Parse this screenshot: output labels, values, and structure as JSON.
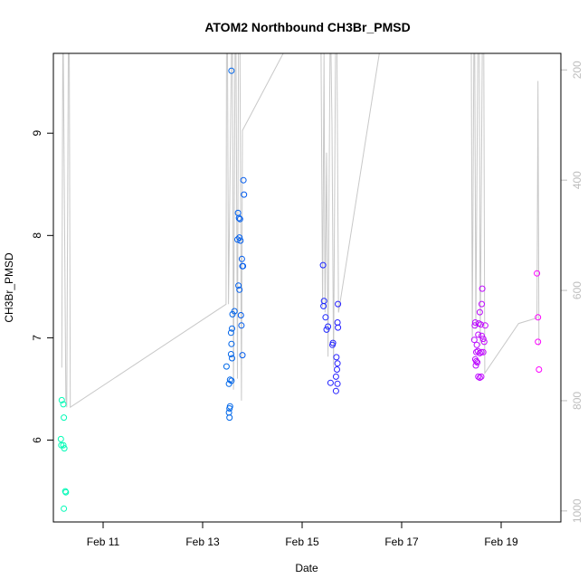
{
  "chart_data": {
    "type": "scatter",
    "title": "ATOM2 Northbound CH3Br_PMSD",
    "xlabel": "Date",
    "ylabel": "CH3Br_PMSD",
    "xlim": [
      10.0,
      20.2
    ],
    "ylim": [
      5.2,
      9.78
    ],
    "right_axis": {
      "range": [
        1020,
        170
      ],
      "ticks": [
        200,
        400,
        600,
        800,
        1000
      ],
      "color": "#bdbdbd"
    },
    "x_ticks": [
      {
        "value": 11,
        "label": "Feb 11"
      },
      {
        "value": 13,
        "label": "Feb 13"
      },
      {
        "value": 15,
        "label": "Feb 15"
      },
      {
        "value": 17,
        "label": "Feb 17"
      },
      {
        "value": 19,
        "label": "Feb 19"
      }
    ],
    "y_ticks": [
      6,
      7,
      8,
      9
    ],
    "altitude_track": [
      [
        10.17,
        740
      ],
      [
        10.19,
        160
      ],
      [
        10.2,
        160
      ],
      [
        10.25,
        795
      ],
      [
        10.27,
        812
      ],
      [
        10.3,
        160
      ],
      [
        10.32,
        160
      ],
      [
        10.34,
        812
      ],
      [
        13.47,
        625
      ],
      [
        13.48,
        160
      ],
      [
        13.5,
        160
      ],
      [
        13.52,
        625
      ],
      [
        13.58,
        160
      ],
      [
        13.6,
        160
      ],
      [
        13.62,
        780
      ],
      [
        13.65,
        160
      ],
      [
        13.67,
        160
      ],
      [
        13.7,
        760
      ],
      [
        13.72,
        160
      ],
      [
        13.75,
        160
      ],
      [
        13.78,
        800
      ],
      [
        13.8,
        310
      ],
      [
        14.62,
        160
      ],
      [
        15.38,
        160
      ],
      [
        15.41,
        630
      ],
      [
        15.44,
        160
      ],
      [
        15.46,
        640
      ],
      [
        15.49,
        350
      ],
      [
        15.52,
        720
      ],
      [
        15.56,
        160
      ],
      [
        15.58,
        160
      ],
      [
        15.6,
        300
      ],
      [
        15.63,
        740
      ],
      [
        15.67,
        160
      ],
      [
        15.7,
        160
      ],
      [
        15.73,
        640
      ],
      [
        16.55,
        160
      ],
      [
        18.4,
        160
      ],
      [
        18.42,
        690
      ],
      [
        18.45,
        160
      ],
      [
        18.47,
        160
      ],
      [
        18.49,
        670
      ],
      [
        18.53,
        160
      ],
      [
        18.56,
        160
      ],
      [
        18.58,
        700
      ],
      [
        18.62,
        160
      ],
      [
        18.65,
        160
      ],
      [
        18.67,
        750
      ],
      [
        19.35,
        660
      ],
      [
        19.72,
        650
      ],
      [
        19.74,
        220
      ],
      [
        19.76,
        700
      ]
    ],
    "points": [
      {
        "x": 10.17,
        "y": 6.39
      },
      {
        "x": 10.2,
        "y": 6.35
      },
      {
        "x": 10.21,
        "y": 6.22
      },
      {
        "x": 10.15,
        "y": 6.01
      },
      {
        "x": 10.16,
        "y": 5.95
      },
      {
        "x": 10.2,
        "y": 5.95
      },
      {
        "x": 10.22,
        "y": 5.92
      },
      {
        "x": 10.24,
        "y": 5.5
      },
      {
        "x": 10.25,
        "y": 5.49
      },
      {
        "x": 10.21,
        "y": 5.33
      },
      {
        "x": 13.58,
        "y": 9.61
      },
      {
        "x": 13.82,
        "y": 8.54
      },
      {
        "x": 13.83,
        "y": 8.4
      },
      {
        "x": 13.71,
        "y": 8.22
      },
      {
        "x": 13.73,
        "y": 8.17
      },
      {
        "x": 13.75,
        "y": 8.16
      },
      {
        "x": 13.7,
        "y": 7.96
      },
      {
        "x": 13.74,
        "y": 7.98
      },
      {
        "x": 13.76,
        "y": 7.95
      },
      {
        "x": 13.79,
        "y": 7.77
      },
      {
        "x": 13.8,
        "y": 7.7
      },
      {
        "x": 13.81,
        "y": 7.7
      },
      {
        "x": 13.72,
        "y": 7.51
      },
      {
        "x": 13.74,
        "y": 7.47
      },
      {
        "x": 13.64,
        "y": 7.26
      },
      {
        "x": 13.6,
        "y": 7.23
      },
      {
        "x": 13.77,
        "y": 7.22
      },
      {
        "x": 13.78,
        "y": 7.12
      },
      {
        "x": 13.59,
        "y": 7.09
      },
      {
        "x": 13.57,
        "y": 7.05
      },
      {
        "x": 13.58,
        "y": 6.94
      },
      {
        "x": 13.57,
        "y": 6.84
      },
      {
        "x": 13.59,
        "y": 6.8
      },
      {
        "x": 13.8,
        "y": 6.83
      },
      {
        "x": 13.48,
        "y": 6.72
      },
      {
        "x": 13.55,
        "y": 6.59
      },
      {
        "x": 13.58,
        "y": 6.58
      },
      {
        "x": 13.53,
        "y": 6.55
      },
      {
        "x": 13.55,
        "y": 6.33
      },
      {
        "x": 13.54,
        "y": 6.31
      },
      {
        "x": 13.53,
        "y": 6.27
      },
      {
        "x": 13.54,
        "y": 6.22
      },
      {
        "x": 15.42,
        "y": 7.71
      },
      {
        "x": 15.44,
        "y": 7.36
      },
      {
        "x": 15.43,
        "y": 7.31
      },
      {
        "x": 15.72,
        "y": 7.33
      },
      {
        "x": 15.47,
        "y": 7.2
      },
      {
        "x": 15.52,
        "y": 7.11
      },
      {
        "x": 15.49,
        "y": 7.08
      },
      {
        "x": 15.71,
        "y": 7.15
      },
      {
        "x": 15.72,
        "y": 7.1
      },
      {
        "x": 15.62,
        "y": 6.95
      },
      {
        "x": 15.61,
        "y": 6.93
      },
      {
        "x": 15.69,
        "y": 6.81
      },
      {
        "x": 15.71,
        "y": 6.75
      },
      {
        "x": 15.7,
        "y": 6.69
      },
      {
        "x": 15.68,
        "y": 6.62
      },
      {
        "x": 15.57,
        "y": 6.56
      },
      {
        "x": 15.71,
        "y": 6.55
      },
      {
        "x": 15.68,
        "y": 6.48
      },
      {
        "x": 18.62,
        "y": 7.48
      },
      {
        "x": 18.57,
        "y": 7.25
      },
      {
        "x": 18.61,
        "y": 7.33
      },
      {
        "x": 18.48,
        "y": 7.15
      },
      {
        "x": 18.47,
        "y": 7.12
      },
      {
        "x": 18.55,
        "y": 7.14
      },
      {
        "x": 18.59,
        "y": 7.13
      },
      {
        "x": 18.68,
        "y": 7.12
      },
      {
        "x": 18.54,
        "y": 7.03
      },
      {
        "x": 18.61,
        "y": 7.02
      },
      {
        "x": 18.64,
        "y": 6.99
      },
      {
        "x": 18.66,
        "y": 6.96
      },
      {
        "x": 18.46,
        "y": 6.98
      },
      {
        "x": 18.51,
        "y": 6.93
      },
      {
        "x": 18.5,
        "y": 6.86
      },
      {
        "x": 18.53,
        "y": 6.87
      },
      {
        "x": 18.57,
        "y": 6.85
      },
      {
        "x": 18.6,
        "y": 6.86
      },
      {
        "x": 18.64,
        "y": 6.86
      },
      {
        "x": 18.48,
        "y": 6.79
      },
      {
        "x": 18.5,
        "y": 6.77
      },
      {
        "x": 18.52,
        "y": 6.76
      },
      {
        "x": 18.49,
        "y": 6.73
      },
      {
        "x": 18.54,
        "y": 6.62
      },
      {
        "x": 18.57,
        "y": 6.61
      },
      {
        "x": 18.6,
        "y": 6.62
      },
      {
        "x": 19.72,
        "y": 7.63
      },
      {
        "x": 19.74,
        "y": 7.2
      },
      {
        "x": 19.74,
        "y": 6.96
      },
      {
        "x": 19.76,
        "y": 6.69
      }
    ],
    "colors": {
      "line": "#c8c8c8",
      "axis": "#000000",
      "right_axis": "#bdbdbd"
    },
    "point_color_range": [
      "#00ffb4",
      "#ff00ff"
    ]
  }
}
